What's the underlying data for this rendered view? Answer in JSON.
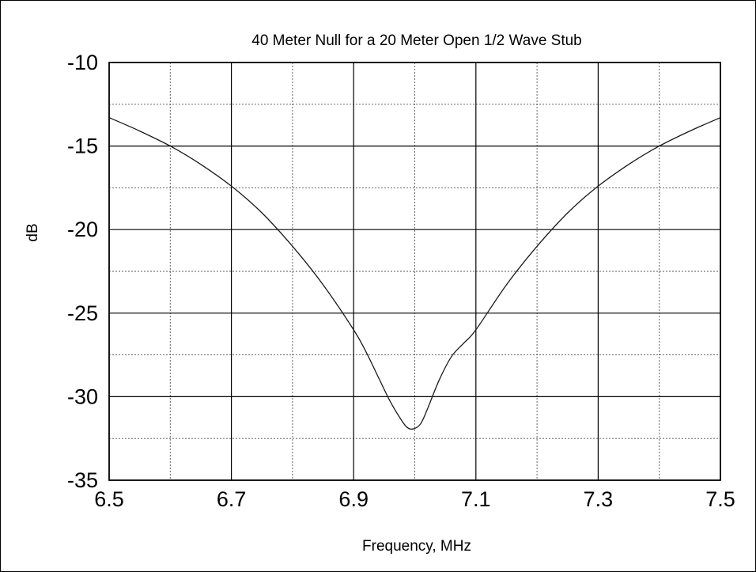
{
  "chart_data": {
    "type": "line",
    "title": "40 Meter Null for a 20 Meter Open 1/2 Wave Stub",
    "xlabel": "Frequency, MHz",
    "ylabel": "dB",
    "xlim": [
      6.5,
      7.5
    ],
    "ylim": [
      -35,
      -10
    ],
    "x_major_ticks": [
      6.5,
      6.7,
      6.9,
      7.1,
      7.3,
      7.5
    ],
    "x_tick_labels": [
      "6.5",
      "6.7",
      "6.9",
      "7.1",
      "7.3",
      "7.5"
    ],
    "x_minor_ticks": [
      6.6,
      6.8,
      7.0,
      7.2,
      7.4
    ],
    "y_major_ticks": [
      -10,
      -15,
      -20,
      -25,
      -30,
      -35
    ],
    "y_tick_labels": [
      "-10",
      "-15",
      "-20",
      "-25",
      "-30",
      "-35"
    ],
    "y_minor_ticks": [
      -12.5,
      -17.5,
      -22.5,
      -27.5,
      -32.5
    ],
    "grid": true,
    "legend": "none",
    "series": [
      {
        "x": [
          6.5,
          6.55,
          6.6,
          6.65,
          6.7,
          6.75,
          6.8,
          6.85,
          6.9,
          6.92,
          6.94,
          6.96,
          6.98,
          6.99,
          7.0,
          7.01,
          7.02,
          7.04,
          7.06,
          7.08,
          7.1,
          7.15,
          7.2,
          7.25,
          7.3,
          7.35,
          7.4,
          7.45,
          7.5
        ],
        "y": [
          -13.3,
          -14.1,
          -15.0,
          -16.1,
          -17.4,
          -19.0,
          -21.0,
          -23.3,
          -26.0,
          -27.3,
          -28.8,
          -30.3,
          -31.5,
          -31.9,
          -31.9,
          -31.6,
          -30.8,
          -29.0,
          -27.6,
          -26.8,
          -26.0,
          -23.3,
          -21.0,
          -19.0,
          -17.4,
          -16.1,
          -15.0,
          -14.1,
          -13.3
        ]
      }
    ]
  }
}
